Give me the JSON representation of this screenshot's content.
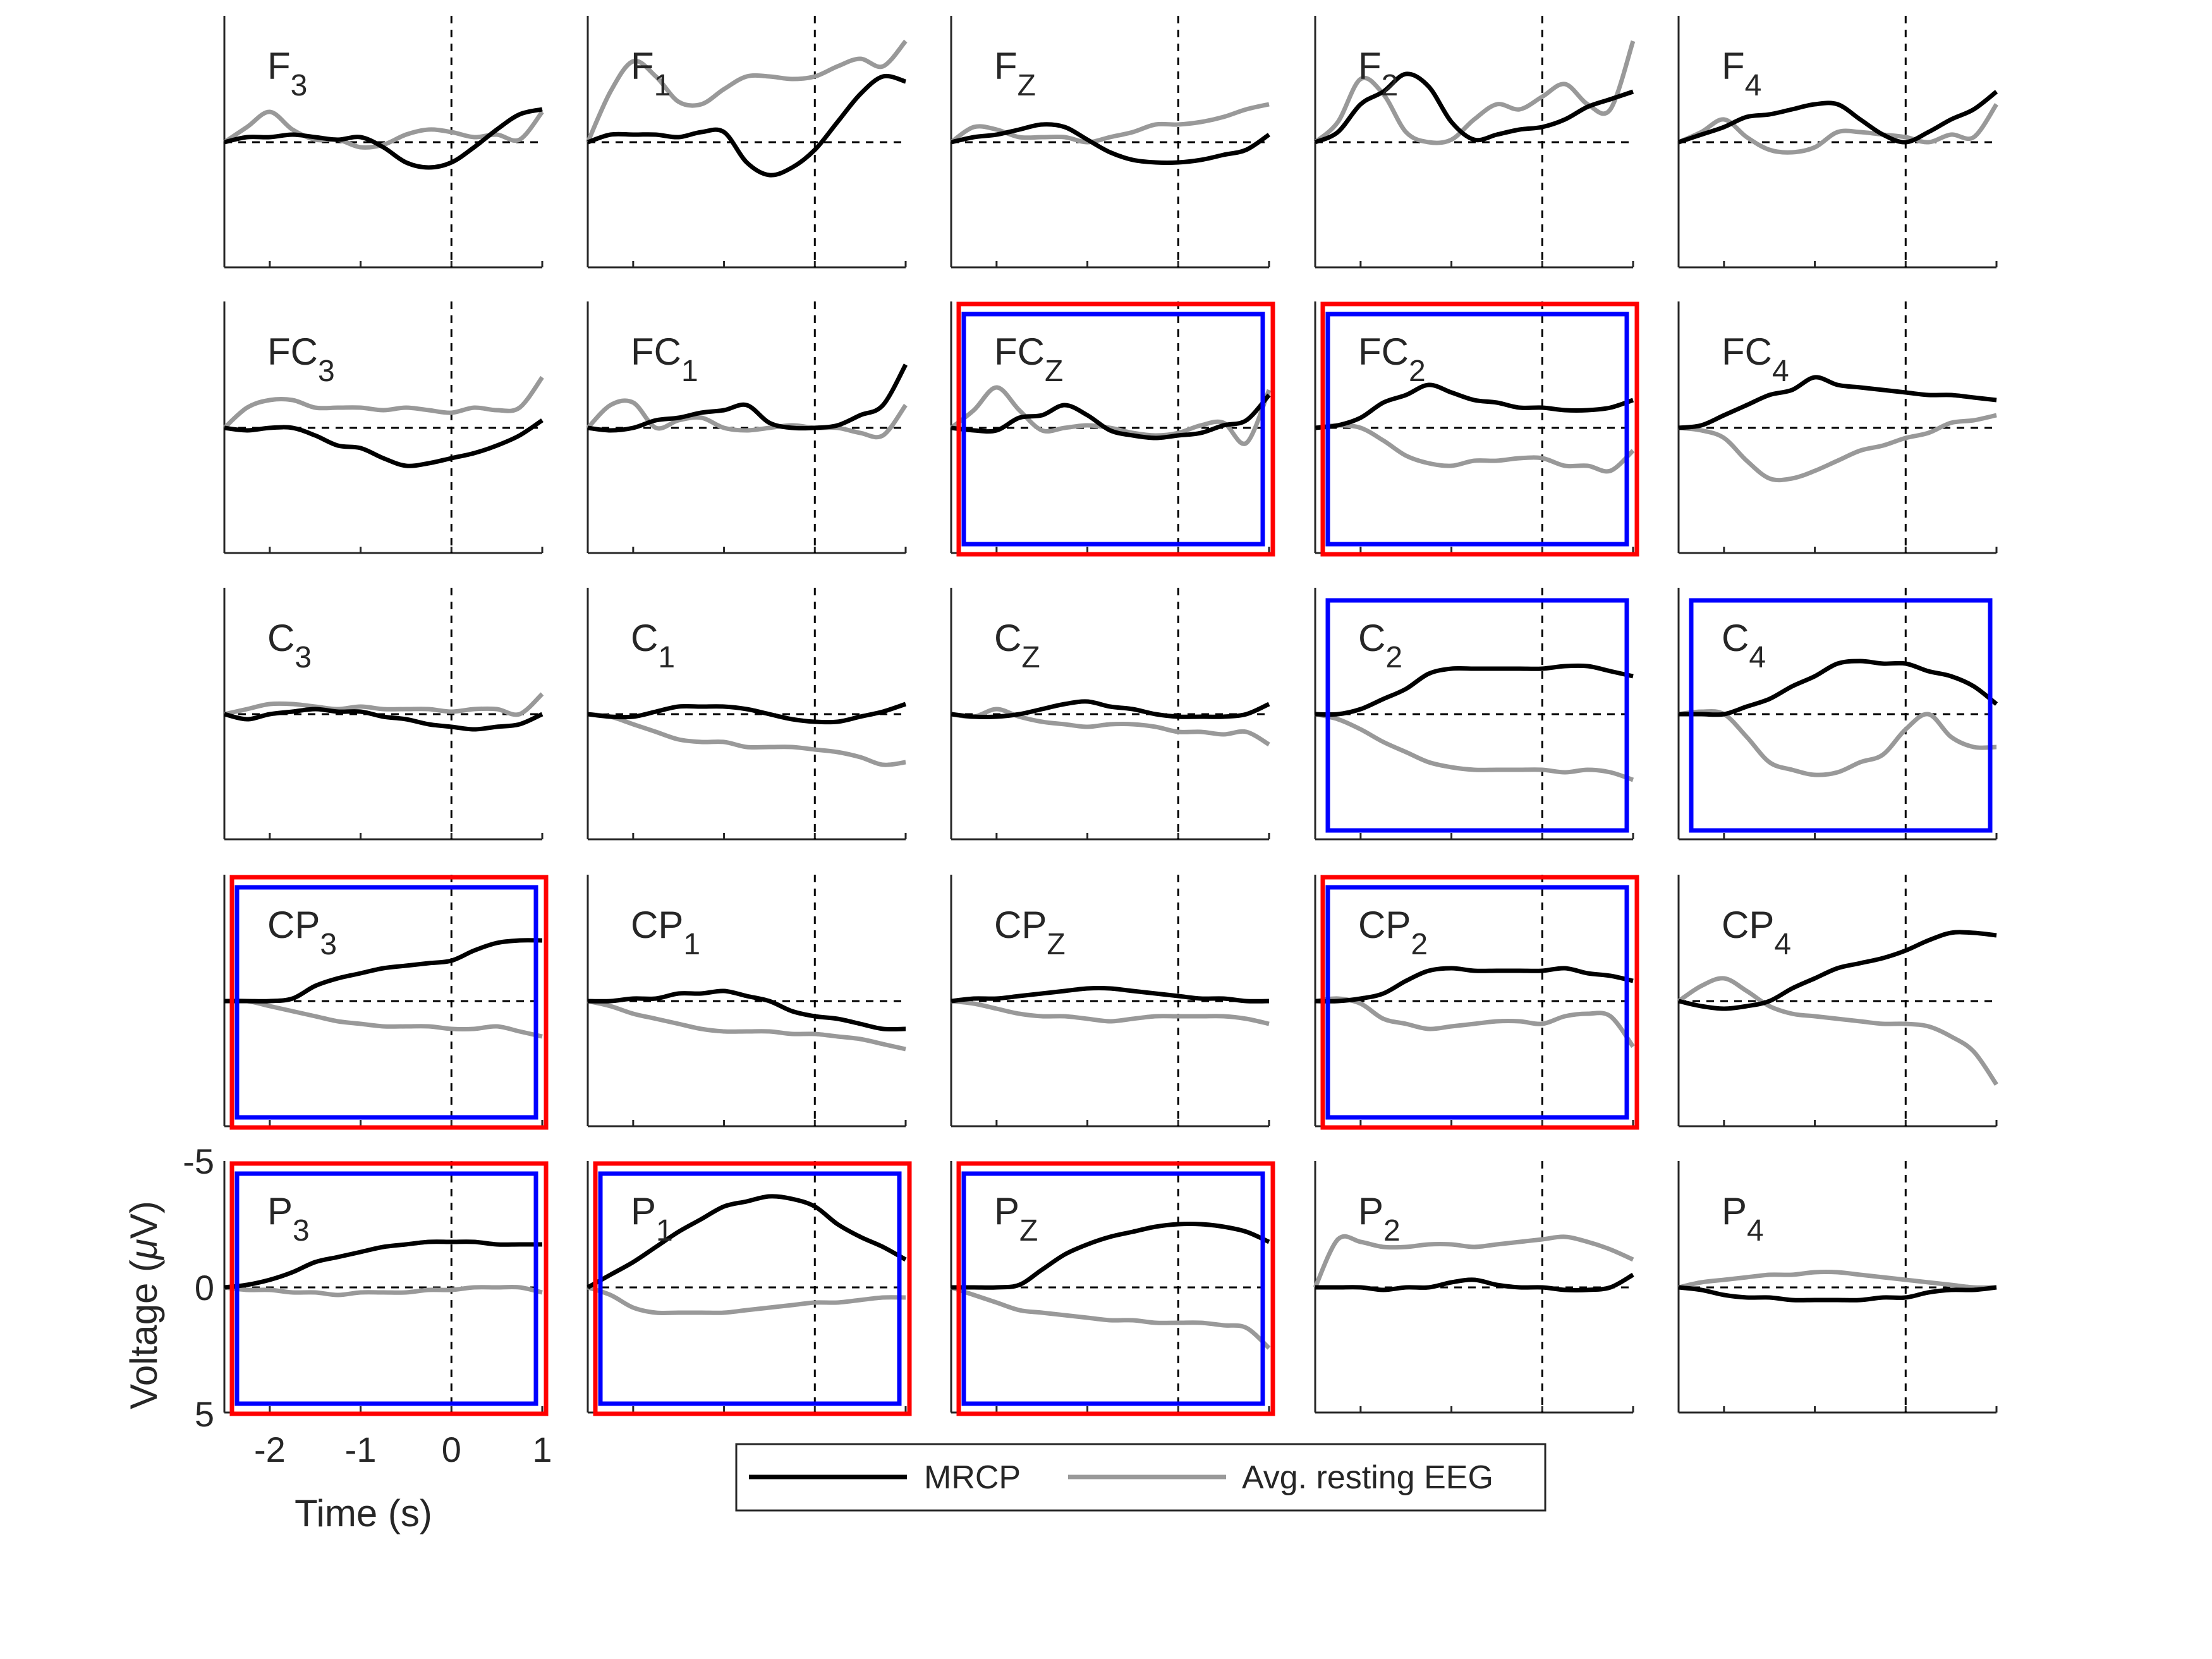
{
  "chart_data": {
    "type": "line",
    "layout": "5x5 small multiples",
    "ylabel": "Voltage (μV)",
    "ylabel_parts": [
      "Voltage (",
      "μ",
      "V)"
    ],
    "xlabel": "Time (s)",
    "xlim": [
      -2.5,
      1
    ],
    "ylim": [
      -5,
      5
    ],
    "y_axis": "reversed (negative up)",
    "xticks": [
      -2,
      -1,
      0,
      1
    ],
    "xtick_labels": [
      "-2",
      "-1",
      "0",
      "1"
    ],
    "yticks": [
      -5,
      0,
      5
    ],
    "ytick_labels": [
      "-5",
      "0",
      "5"
    ],
    "reference_lines": {
      "x": 0,
      "y": 0,
      "style": "dashed"
    },
    "legend": {
      "placement": "bottom-center",
      "entries": [
        {
          "label": "MRCP",
          "color": "#000000"
        },
        {
          "label": "Avg. resting EEG",
          "color": "#999999"
        }
      ]
    },
    "highlight_colors": {
      "red": "#ff0000",
      "blue": "#0000ff"
    },
    "x": [
      -2.5,
      -2.25,
      -2.0,
      -1.75,
      -1.5,
      -1.25,
      -1.0,
      -0.75,
      -0.5,
      -0.25,
      0.0,
      0.25,
      0.5,
      0.75,
      1.0
    ],
    "panels": [
      {
        "base": "F",
        "sub": "3",
        "boxes": [],
        "mrcp": [
          0,
          -0.2,
          -0.2,
          -0.3,
          -0.2,
          -0.1,
          -0.2,
          0.2,
          0.8,
          1.0,
          0.8,
          0.2,
          -0.5,
          -1.1,
          -1.3
        ],
        "rest": [
          0,
          -0.6,
          -1.2,
          -0.5,
          -0.1,
          -0.1,
          0.2,
          0.1,
          -0.3,
          -0.5,
          -0.4,
          -0.2,
          -0.3,
          -0.1,
          -1.2
        ]
      },
      {
        "base": "F",
        "sub": "1",
        "boxes": [],
        "mrcp": [
          0,
          -0.3,
          -0.3,
          -0.3,
          -0.2,
          -0.4,
          -0.4,
          0.8,
          1.3,
          1.0,
          0.3,
          -0.8,
          -1.9,
          -2.6,
          -2.4
        ],
        "rest": [
          0,
          -2.0,
          -3.2,
          -2.6,
          -1.6,
          -1.5,
          -2.1,
          -2.6,
          -2.6,
          -2.5,
          -2.6,
          -3.0,
          -3.3,
          -3.0,
          -4.0
        ]
      },
      {
        "base": "F",
        "sub": "Z",
        "boxes": [],
        "mrcp": [
          0,
          -0.2,
          -0.3,
          -0.5,
          -0.7,
          -0.6,
          -0.1,
          0.4,
          0.7,
          0.8,
          0.8,
          0.7,
          0.5,
          0.3,
          -0.3
        ],
        "rest": [
          0,
          -0.6,
          -0.5,
          -0.2,
          -0.2,
          -0.2,
          0.0,
          -0.2,
          -0.4,
          -0.7,
          -0.7,
          -0.8,
          -1.0,
          -1.3,
          -1.5
        ]
      },
      {
        "base": "F",
        "sub": "2",
        "boxes": [],
        "mrcp": [
          0,
          -0.4,
          -1.5,
          -2.0,
          -2.7,
          -2.2,
          -0.8,
          -0.1,
          -0.3,
          -0.5,
          -0.6,
          -0.9,
          -1.4,
          -1.7,
          -2.0
        ],
        "rest": [
          0,
          -0.8,
          -2.5,
          -1.9,
          -0.4,
          0.0,
          -0.1,
          -0.9,
          -1.5,
          -1.3,
          -1.8,
          -2.3,
          -1.5,
          -1.3,
          -4.0
        ]
      },
      {
        "base": "F",
        "sub": "4",
        "boxes": [],
        "mrcp": [
          0,
          -0.3,
          -0.6,
          -1.0,
          -1.1,
          -1.3,
          -1.5,
          -1.5,
          -0.9,
          -0.3,
          0.0,
          -0.4,
          -0.9,
          -1.3,
          -2.0
        ],
        "rest": [
          0,
          -0.4,
          -0.9,
          -0.2,
          0.3,
          0.4,
          0.2,
          -0.4,
          -0.4,
          -0.3,
          -0.2,
          0.0,
          -0.3,
          -0.2,
          -1.5
        ]
      },
      {
        "base": "FC",
        "sub": "3",
        "boxes": [],
        "mrcp": [
          0,
          0.1,
          0.0,
          0.0,
          0.3,
          0.7,
          0.8,
          1.2,
          1.5,
          1.4,
          1.2,
          1.0,
          0.7,
          0.3,
          -0.3
        ],
        "rest": [
          0,
          -0.8,
          -1.1,
          -1.1,
          -0.8,
          -0.8,
          -0.8,
          -0.7,
          -0.8,
          -0.7,
          -0.6,
          -0.8,
          -0.7,
          -0.8,
          -2.0
        ]
      },
      {
        "base": "FC",
        "sub": "1",
        "boxes": [],
        "mrcp": [
          0,
          0.1,
          0.0,
          -0.3,
          -0.4,
          -0.6,
          -0.7,
          -0.9,
          -0.2,
          0.0,
          0.0,
          -0.1,
          -0.5,
          -0.9,
          -2.5
        ],
        "rest": [
          0,
          -0.9,
          -1.0,
          0.0,
          -0.3,
          -0.4,
          0.0,
          0.1,
          0.0,
          -0.1,
          0.0,
          0.0,
          0.2,
          0.3,
          -0.9
        ]
      },
      {
        "base": "FC",
        "sub": "Z",
        "boxes": [
          "red",
          "blue"
        ],
        "mrcp": [
          0,
          0.1,
          0.1,
          -0.4,
          -0.5,
          -0.9,
          -0.5,
          0.1,
          0.3,
          0.4,
          0.3,
          0.2,
          -0.1,
          -0.3,
          -1.3
        ],
        "rest": [
          0,
          -0.7,
          -1.6,
          -0.7,
          0.1,
          0.0,
          -0.1,
          0.0,
          0.2,
          0.3,
          0.2,
          -0.1,
          -0.2,
          0.6,
          -1.5
        ]
      },
      {
        "base": "FC",
        "sub": "2",
        "boxes": [
          "red",
          "blue"
        ],
        "mrcp": [
          0,
          -0.1,
          -0.4,
          -1.0,
          -1.3,
          -1.7,
          -1.4,
          -1.1,
          -1.0,
          -0.8,
          -0.8,
          -0.7,
          -0.7,
          -0.8,
          -1.1
        ],
        "rest": [
          0,
          -0.1,
          0.0,
          0.5,
          1.1,
          1.4,
          1.5,
          1.3,
          1.3,
          1.2,
          1.2,
          1.5,
          1.5,
          1.7,
          0.9
        ]
      },
      {
        "base": "FC",
        "sub": "4",
        "boxes": [],
        "mrcp": [
          0,
          -0.1,
          -0.5,
          -0.9,
          -1.3,
          -1.5,
          -2.0,
          -1.7,
          -1.6,
          -1.5,
          -1.4,
          -1.3,
          -1.3,
          -1.2,
          -1.1
        ],
        "rest": [
          0,
          0.1,
          0.4,
          1.3,
          2.0,
          2.0,
          1.7,
          1.3,
          0.9,
          0.7,
          0.4,
          0.2,
          -0.2,
          -0.3,
          -0.5
        ]
      },
      {
        "base": "C",
        "sub": "3",
        "boxes": [],
        "mrcp": [
          0,
          0.2,
          0.0,
          -0.1,
          -0.2,
          -0.1,
          -0.1,
          0.1,
          0.2,
          0.4,
          0.5,
          0.6,
          0.5,
          0.4,
          0.0
        ],
        "rest": [
          0,
          -0.2,
          -0.4,
          -0.4,
          -0.3,
          -0.2,
          -0.3,
          -0.2,
          -0.2,
          -0.2,
          -0.1,
          -0.2,
          -0.2,
          0.0,
          -0.8
        ]
      },
      {
        "base": "C",
        "sub": "1",
        "boxes": [],
        "mrcp": [
          0,
          0.1,
          0.1,
          -0.1,
          -0.3,
          -0.3,
          -0.3,
          -0.2,
          0.0,
          0.2,
          0.3,
          0.3,
          0.1,
          -0.1,
          -0.4
        ],
        "rest": [
          0,
          0.1,
          0.4,
          0.7,
          1.0,
          1.1,
          1.1,
          1.3,
          1.3,
          1.3,
          1.4,
          1.5,
          1.7,
          2.0,
          1.9
        ]
      },
      {
        "base": "C",
        "sub": "Z",
        "boxes": [],
        "mrcp": [
          0,
          0.1,
          0.1,
          0.0,
          -0.2,
          -0.4,
          -0.5,
          -0.3,
          -0.2,
          0.0,
          0.1,
          0.1,
          0.1,
          0.0,
          -0.4
        ],
        "rest": [
          0,
          0.1,
          -0.2,
          0.1,
          0.3,
          0.4,
          0.5,
          0.4,
          0.4,
          0.5,
          0.7,
          0.7,
          0.8,
          0.7,
          1.2
        ]
      },
      {
        "base": "C",
        "sub": "2",
        "boxes": [
          "blue"
        ],
        "mrcp": [
          0,
          0.0,
          -0.2,
          -0.6,
          -1.0,
          -1.6,
          -1.8,
          -1.8,
          -1.8,
          -1.8,
          -1.8,
          -1.9,
          -1.9,
          -1.7,
          -1.5
        ],
        "rest": [
          0,
          0.2,
          0.6,
          1.1,
          1.5,
          1.9,
          2.1,
          2.2,
          2.2,
          2.2,
          2.2,
          2.3,
          2.2,
          2.3,
          2.6
        ]
      },
      {
        "base": "C",
        "sub": "4",
        "boxes": [
          "blue"
        ],
        "mrcp": [
          0,
          0.0,
          0.0,
          -0.3,
          -0.6,
          -1.1,
          -1.5,
          -2.0,
          -2.1,
          -2.0,
          -2.0,
          -1.7,
          -1.5,
          -1.1,
          -0.4
        ],
        "rest": [
          0,
          -0.1,
          0.0,
          0.9,
          1.9,
          2.2,
          2.4,
          2.3,
          1.9,
          1.6,
          0.6,
          0.0,
          0.9,
          1.3,
          1.3
        ]
      },
      {
        "base": "CP",
        "sub": "3",
        "boxes": [
          "red",
          "blue"
        ],
        "mrcp": [
          0,
          0.0,
          0.0,
          -0.1,
          -0.6,
          -0.9,
          -1.1,
          -1.3,
          -1.4,
          -1.5,
          -1.6,
          -2.0,
          -2.3,
          -2.4,
          -2.4
        ],
        "rest": [
          0,
          0.0,
          0.2,
          0.4,
          0.6,
          0.8,
          0.9,
          1.0,
          1.0,
          1.0,
          1.1,
          1.1,
          1.0,
          1.2,
          1.4
        ]
      },
      {
        "base": "CP",
        "sub": "1",
        "boxes": [],
        "mrcp": [
          0,
          0.0,
          -0.1,
          -0.1,
          -0.3,
          -0.3,
          -0.4,
          -0.2,
          0.0,
          0.4,
          0.6,
          0.7,
          0.9,
          1.1,
          1.1
        ],
        "rest": [
          0,
          0.2,
          0.5,
          0.7,
          0.9,
          1.1,
          1.2,
          1.2,
          1.2,
          1.3,
          1.3,
          1.4,
          1.5,
          1.7,
          1.9
        ]
      },
      {
        "base": "CP",
        "sub": "Z",
        "boxes": [],
        "mrcp": [
          0,
          -0.1,
          -0.1,
          -0.2,
          -0.3,
          -0.4,
          -0.5,
          -0.5,
          -0.4,
          -0.3,
          -0.2,
          -0.1,
          -0.1,
          0.0,
          0.0
        ],
        "rest": [
          0,
          0.1,
          0.3,
          0.5,
          0.6,
          0.6,
          0.7,
          0.8,
          0.7,
          0.6,
          0.6,
          0.6,
          0.6,
          0.7,
          0.9
        ]
      },
      {
        "base": "CP",
        "sub": "2",
        "boxes": [
          "red",
          "blue"
        ],
        "mrcp": [
          0,
          0.0,
          -0.1,
          -0.3,
          -0.8,
          -1.2,
          -1.3,
          -1.2,
          -1.2,
          -1.2,
          -1.2,
          -1.3,
          -1.1,
          -1.0,
          -0.8
        ],
        "rest": [
          0,
          -0.1,
          0.1,
          0.7,
          0.9,
          1.1,
          1.0,
          0.9,
          0.8,
          0.8,
          0.9,
          0.6,
          0.5,
          0.6,
          1.8
        ]
      },
      {
        "base": "CP",
        "sub": "4",
        "boxes": [],
        "mrcp": [
          0,
          0.2,
          0.3,
          0.2,
          0.0,
          -0.5,
          -0.9,
          -1.3,
          -1.5,
          -1.7,
          -2.0,
          -2.4,
          -2.7,
          -2.7,
          -2.6
        ],
        "rest": [
          0,
          -0.6,
          -0.9,
          -0.4,
          0.2,
          0.5,
          0.6,
          0.7,
          0.8,
          0.9,
          0.9,
          1.0,
          1.4,
          2.0,
          3.3
        ]
      },
      {
        "base": "P",
        "sub": "3",
        "boxes": [
          "red",
          "blue"
        ],
        "mrcp": [
          0,
          -0.1,
          -0.3,
          -0.6,
          -1.0,
          -1.2,
          -1.4,
          -1.6,
          -1.7,
          -1.8,
          -1.8,
          -1.8,
          -1.7,
          -1.7,
          -1.7
        ],
        "rest": [
          0,
          0.1,
          0.1,
          0.2,
          0.2,
          0.3,
          0.2,
          0.2,
          0.2,
          0.1,
          0.1,
          0.0,
          0.0,
          0.0,
          0.2
        ]
      },
      {
        "base": "P",
        "sub": "1",
        "boxes": [
          "red",
          "blue"
        ],
        "mrcp": [
          0,
          -0.5,
          -1.0,
          -1.6,
          -2.2,
          -2.7,
          -3.2,
          -3.4,
          -3.6,
          -3.5,
          -3.2,
          -2.5,
          -2.0,
          -1.6,
          -1.1
        ],
        "rest": [
          0,
          0.3,
          0.8,
          1.0,
          1.0,
          1.0,
          1.0,
          0.9,
          0.8,
          0.7,
          0.6,
          0.6,
          0.5,
          0.4,
          0.4
        ]
      },
      {
        "base": "P",
        "sub": "Z",
        "boxes": [
          "red",
          "blue"
        ],
        "mrcp": [
          0,
          0.0,
          0.0,
          -0.1,
          -0.7,
          -1.3,
          -1.7,
          -2.0,
          -2.2,
          -2.4,
          -2.5,
          -2.5,
          -2.4,
          -2.2,
          -1.8
        ],
        "rest": [
          0,
          0.3,
          0.6,
          0.9,
          1.0,
          1.1,
          1.2,
          1.3,
          1.3,
          1.4,
          1.4,
          1.4,
          1.5,
          1.6,
          2.4
        ]
      },
      {
        "base": "P",
        "sub": "2",
        "boxes": [],
        "mrcp": [
          0,
          0.0,
          0.0,
          0.1,
          0.0,
          0.0,
          -0.2,
          -0.3,
          -0.1,
          0.0,
          0.0,
          0.1,
          0.1,
          0.0,
          -0.5
        ],
        "rest": [
          0,
          -1.9,
          -1.8,
          -1.6,
          -1.6,
          -1.7,
          -1.7,
          -1.6,
          -1.7,
          -1.8,
          -1.9,
          -2.0,
          -1.8,
          -1.5,
          -1.1
        ]
      },
      {
        "base": "P",
        "sub": "4",
        "boxes": [],
        "mrcp": [
          0,
          0.1,
          0.3,
          0.4,
          0.4,
          0.5,
          0.5,
          0.5,
          0.5,
          0.4,
          0.4,
          0.2,
          0.1,
          0.1,
          0.0
        ],
        "rest": [
          0,
          -0.2,
          -0.3,
          -0.4,
          -0.5,
          -0.5,
          -0.6,
          -0.6,
          -0.5,
          -0.4,
          -0.3,
          -0.2,
          -0.1,
          0.0,
          0.0
        ]
      }
    ]
  }
}
